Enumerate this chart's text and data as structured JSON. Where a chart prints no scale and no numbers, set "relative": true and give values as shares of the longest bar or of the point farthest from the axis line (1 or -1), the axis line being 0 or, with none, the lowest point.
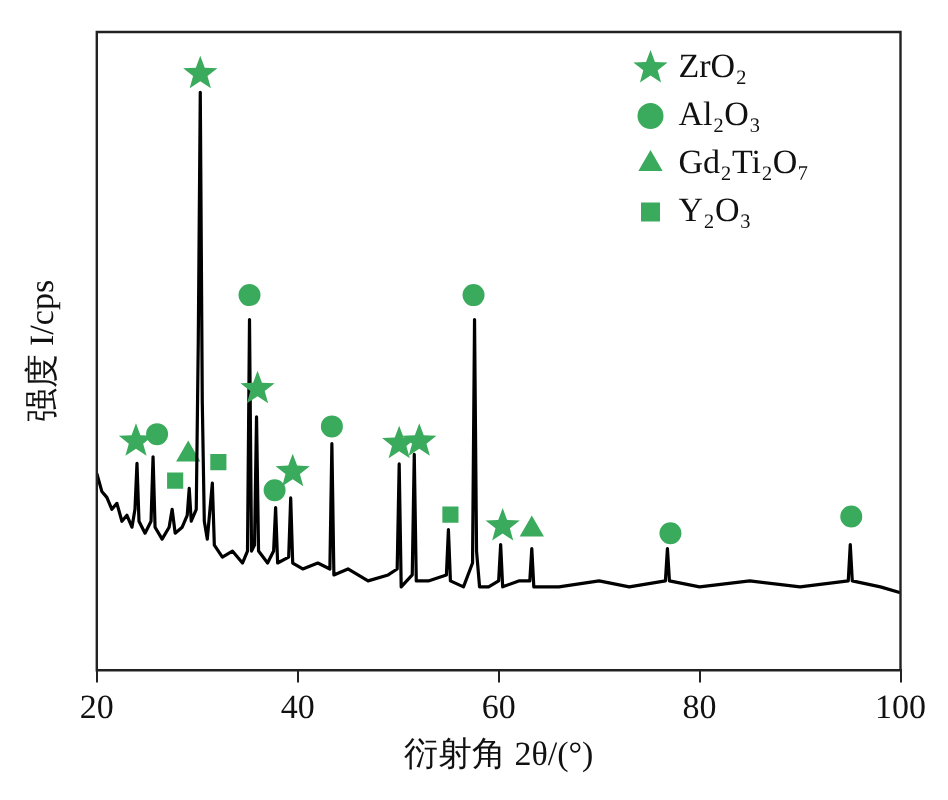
{
  "chart_data": {
    "type": "line",
    "xlabel": "衍射角 2θ/(°)",
    "ylabel": "强度 I/cps",
    "xlim": [
      20,
      100
    ],
    "xticks": [
      20,
      40,
      60,
      80,
      100
    ],
    "relative": true,
    "legend": "top right",
    "grid": false,
    "series": [
      {
        "type": "line",
        "color": "#000000",
        "marker": "none",
        "x": [
          20,
          20.5,
          21,
          21.5,
          22,
          22.5,
          23,
          23.5,
          23.8,
          24,
          24.2,
          24.8,
          25.4,
          25.6,
          25.8,
          26.5,
          27.2,
          27.5,
          27.8,
          28.5,
          29,
          29.2,
          29.4,
          29.9,
          30.1,
          30.3,
          30.5,
          30.7,
          31,
          31.5,
          31.7,
          32.5,
          33.5,
          34.5,
          35,
          35.2,
          35.4,
          35.7,
          35.9,
          36.1,
          37,
          37.6,
          37.8,
          38,
          39.1,
          39.3,
          39.5,
          40.5,
          42,
          43.2,
          43.4,
          43.6,
          45,
          47,
          49,
          49.9,
          50.1,
          50.3,
          51.4,
          51.6,
          51.8,
          53,
          54.8,
          55,
          55.2,
          56.5,
          57.4,
          57.6,
          57.8,
          58.1,
          59,
          60,
          60.2,
          60.4,
          62,
          63.1,
          63.3,
          63.5,
          66,
          70,
          73,
          76.6,
          76.8,
          77,
          80,
          85,
          90,
          94.8,
          95,
          95.2,
          98,
          100
        ],
        "values": [
          0.33,
          0.3,
          0.29,
          0.27,
          0.28,
          0.25,
          0.26,
          0.24,
          0.27,
          0.347,
          0.25,
          0.23,
          0.25,
          0.358,
          0.24,
          0.22,
          0.24,
          0.27,
          0.23,
          0.24,
          0.26,
          0.305,
          0.25,
          0.27,
          0.55,
          0.969,
          0.45,
          0.25,
          0.22,
          0.314,
          0.21,
          0.19,
          0.2,
          0.18,
          0.2,
          0.588,
          0.2,
          0.21,
          0.425,
          0.2,
          0.18,
          0.2,
          0.273,
          0.18,
          0.19,
          0.289,
          0.18,
          0.17,
          0.18,
          0.17,
          0.38,
          0.16,
          0.17,
          0.15,
          0.16,
          0.17,
          0.346,
          0.14,
          0.16,
          0.362,
          0.15,
          0.15,
          0.16,
          0.236,
          0.15,
          0.14,
          0.18,
          0.588,
          0.2,
          0.14,
          0.14,
          0.15,
          0.211,
          0.14,
          0.15,
          0.15,
          0.204,
          0.14,
          0.14,
          0.15,
          0.14,
          0.15,
          0.204,
          0.15,
          0.14,
          0.15,
          0.14,
          0.15,
          0.211,
          0.15,
          0.14,
          0.13
        ]
      },
      {
        "type": "scatter",
        "name": "ZrO₂",
        "color": "#3aaa5c",
        "marker": "star",
        "x": [
          23.9,
          30.3,
          36.0,
          39.5,
          50.1,
          52.1,
          60.4
        ],
        "values": [
          0.384,
          1.0,
          0.472,
          0.333,
          0.38,
          0.384,
          0.242
        ]
      },
      {
        "type": "scatter",
        "name": "Al₂O₃",
        "color": "#3aaa5c",
        "marker": "circle",
        "x": [
          26.0,
          35.2,
          37.7,
          43.4,
          57.5,
          77.1,
          95.1
        ],
        "values": [
          0.396,
          0.629,
          0.302,
          0.409,
          0.629,
          0.23,
          0.258
        ]
      },
      {
        "type": "scatter",
        "name": "Gd₂Ti₂O₇",
        "color": "#3aaa5c",
        "marker": "triangle",
        "x": [
          29.1,
          63.3
        ],
        "values": [
          0.362,
          0.236
        ]
      },
      {
        "type": "scatter",
        "name": "Y₂O₃",
        "color": "#3aaa5c",
        "marker": "square",
        "x": [
          27.8,
          32.1,
          55.2
        ],
        "values": [
          0.318,
          0.349,
          0.261
        ]
      }
    ]
  }
}
